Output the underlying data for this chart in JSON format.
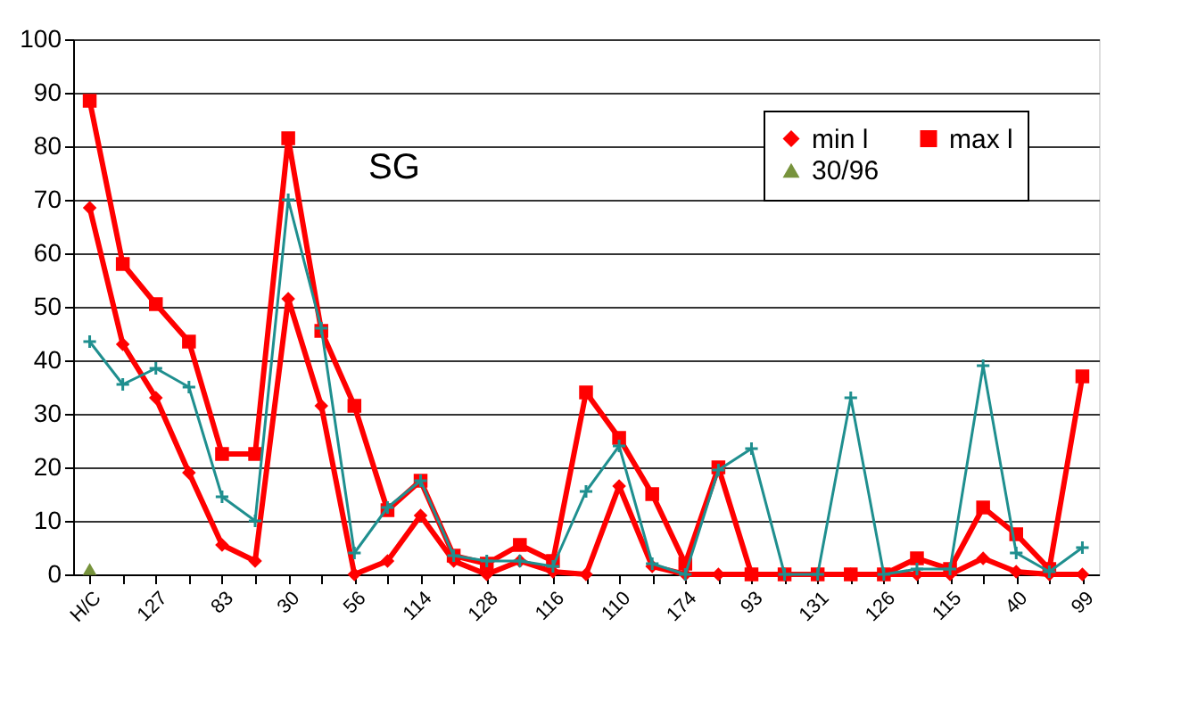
{
  "chart_data": {
    "type": "line",
    "title": "SG",
    "categories": [
      "H/C",
      null,
      "127",
      null,
      "83",
      null,
      "30",
      null,
      "56",
      null,
      "114",
      null,
      "128",
      null,
      "116",
      null,
      "110",
      null,
      "174",
      null,
      "93",
      null,
      "131",
      null,
      "126",
      null,
      "115",
      null,
      "40",
      null,
      "99"
    ],
    "series": [
      {
        "name": "min l",
        "color": "#ff0000",
        "marker": "diamond",
        "values": [
          68.5,
          43,
          33,
          19,
          5.5,
          2.5,
          51.5,
          31.5,
          0,
          2.5,
          11,
          2.5,
          0,
          2.5,
          0.5,
          0,
          16.5,
          1.5,
          0,
          0,
          0,
          0,
          0,
          0,
          0,
          0,
          0,
          3,
          0.5,
          0,
          0
        ]
      },
      {
        "name": "max l",
        "color": "#ff0000",
        "marker": "square",
        "values": [
          88.5,
          58,
          50.5,
          43.5,
          22.5,
          22.5,
          81.5,
          45.5,
          31.5,
          12,
          17.5,
          3.5,
          2,
          5.5,
          2.5,
          34,
          25.5,
          15,
          2,
          20,
          0,
          0,
          0,
          0,
          0,
          3,
          1,
          12.5,
          7.5,
          1,
          37
        ]
      },
      {
        "name": "30/96",
        "color": "#77933c",
        "marker": "triangle",
        "values": [
          1,
          null,
          null,
          null,
          null,
          null,
          null,
          null,
          null,
          null,
          null,
          null,
          null,
          null,
          null,
          null,
          null,
          null,
          null,
          null,
          null,
          null,
          null,
          null,
          null,
          null,
          null,
          null,
          null,
          null,
          null
        ]
      },
      {
        "color": "#1f8f8f",
        "marker": "cross",
        "values": [
          43.5,
          35.5,
          38.5,
          35,
          14.5,
          10,
          70,
          46,
          4,
          12.5,
          17.5,
          3.5,
          2.5,
          2.5,
          1.5,
          15.5,
          24,
          2,
          0,
          19.5,
          23.5,
          0,
          0,
          33,
          0,
          1,
          1,
          39,
          4,
          0.5,
          5
        ]
      }
    ],
    "ylim": [
      0,
      100
    ],
    "yticks": [
      0,
      10,
      20,
      30,
      40,
      50,
      60,
      70,
      80,
      90,
      100
    ],
    "grid": "y",
    "legend": "top right"
  }
}
